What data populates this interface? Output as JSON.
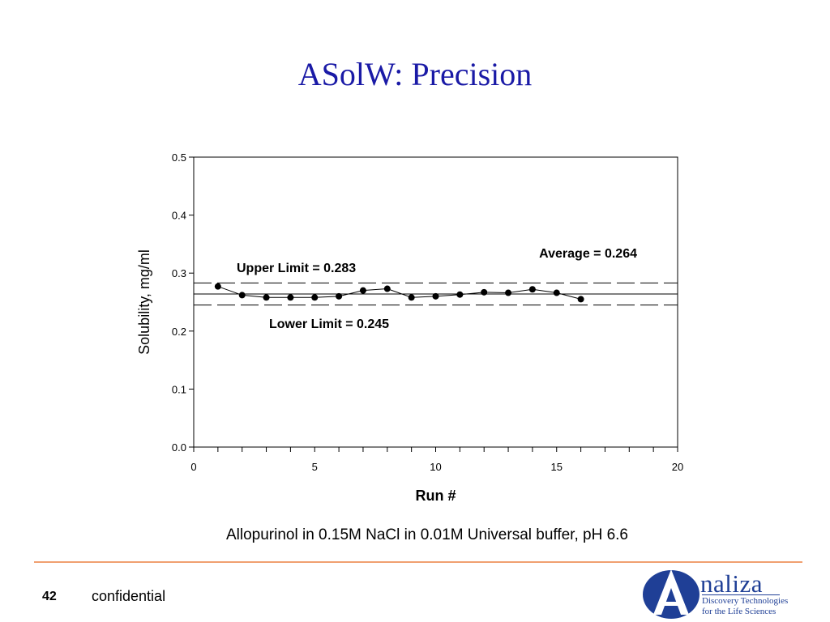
{
  "slide": {
    "title": "ASolW: Precision",
    "caption": "Allopurinol in 0.15M NaCl in 0.01M Universal buffer, pH 6.6",
    "page_number": "42",
    "footer_text": "confidential"
  },
  "logo": {
    "name": "naliza",
    "tagline_1": "Discovery Technologies",
    "tagline_2": "for the Life Sciences",
    "colors": {
      "primary": "#1f3f96",
      "accent": "#ffffff"
    }
  },
  "colors": {
    "title": "#1a1aa6",
    "footer_rule": "#f0a070",
    "series": "#000000"
  },
  "chart_data": {
    "type": "line",
    "xlabel": "Run #",
    "ylabel": "Solubility, mg/ml",
    "xlim": [
      0,
      20
    ],
    "ylim": [
      0.0,
      0.5
    ],
    "xticks": [
      0,
      5,
      10,
      15,
      20
    ],
    "yticks": [
      0.0,
      0.1,
      0.2,
      0.3,
      0.4,
      0.5
    ],
    "ytick_labels": [
      "0.0",
      "0.1",
      "0.2",
      "0.3",
      "0.4",
      "0.5"
    ],
    "grid": false,
    "x": [
      1,
      2,
      3,
      4,
      5,
      6,
      7,
      8,
      9,
      10,
      11,
      12,
      13,
      14,
      15,
      16
    ],
    "series": [
      {
        "values": [
          0.277,
          0.262,
          0.258,
          0.258,
          0.258,
          0.26,
          0.27,
          0.273,
          0.258,
          0.26,
          0.263,
          0.267,
          0.266,
          0.272,
          0.266,
          0.255
        ]
      }
    ],
    "reference_lines": [
      {
        "label": "Upper Limit = 0.283",
        "value": 0.283,
        "style": "dashed"
      },
      {
        "label": "Average = 0.264",
        "value": 0.264,
        "style": "solid"
      },
      {
        "label": "Lower Limit = 0.245",
        "value": 0.245,
        "style": "dashed"
      }
    ]
  }
}
